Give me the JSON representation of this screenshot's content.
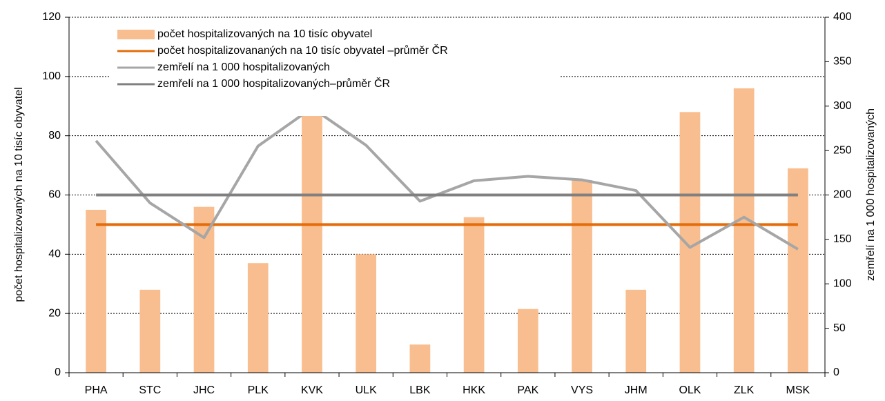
{
  "chart_data": {
    "type": "bar",
    "categories": [
      "PHA",
      "STC",
      "JHC",
      "PLK",
      "KVK",
      "ULK",
      "LBK",
      "HKK",
      "PAK",
      "VYS",
      "JHM",
      "OLK",
      "ZLK",
      "MSK"
    ],
    "y_label": "počet hospitalizovaných na 10 tisíc obyvatel",
    "y2_label": "zemřelí na 1 000 hospitalizovaných",
    "ylim": [
      0,
      120
    ],
    "yticks": [
      0,
      20,
      40,
      60,
      80,
      100,
      120
    ],
    "y2lim": [
      0,
      400
    ],
    "y2ticks": [
      0,
      50,
      100,
      150,
      200,
      250,
      300,
      350,
      400
    ],
    "grid": true,
    "legend": "top-left",
    "series": [
      {
        "name": "počet hospitalizovaných na 10 tisíc obyvatel",
        "type": "bar",
        "color": "#f9be8f",
        "values": [
          55,
          28,
          56,
          37,
          90,
          40,
          9.5,
          52.5,
          21.5,
          65,
          28,
          88,
          96,
          69
        ]
      },
      {
        "name": "počet hospitalizovananých na 10 tisíc obyvatel –průměr ČR",
        "type": "line",
        "color": "#e46c0a",
        "values": [
          50,
          50,
          50,
          50,
          50,
          50,
          50,
          50,
          50,
          50,
          50,
          50,
          50,
          50
        ]
      },
      {
        "name": "zemřelí na 1 000 hospitalizovaných",
        "type": "line",
        "color": "#a6a6a6",
        "axis": "y2",
        "values": [
          261,
          191,
          152,
          255,
          298,
          256,
          193,
          216,
          221,
          217,
          205,
          141,
          175,
          139
        ]
      },
      {
        "name": "zemřelí na 1 000 hospitalizovaných–průměr ČR",
        "type": "line",
        "color": "#808080",
        "axis": "y2",
        "values": [
          200,
          200,
          200,
          200,
          200,
          200,
          200,
          200,
          200,
          200,
          200,
          200,
          200,
          200
        ]
      }
    ]
  }
}
